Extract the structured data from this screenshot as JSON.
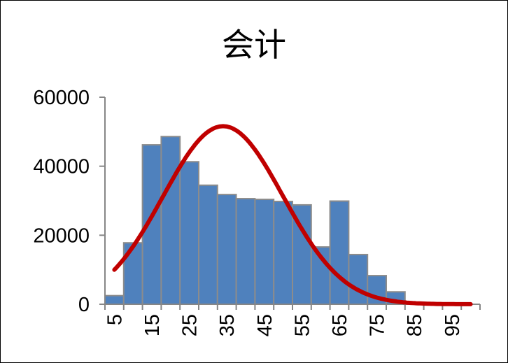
{
  "chart_data": {
    "type": "bar",
    "title": "会计",
    "xlabel": "",
    "ylabel": "",
    "bins": [
      5,
      10,
      15,
      20,
      25,
      30,
      35,
      40,
      45,
      50,
      55,
      60,
      65,
      70,
      75,
      80,
      85,
      90,
      95,
      100
    ],
    "values": [
      2500,
      17800,
      46200,
      48600,
      41300,
      34500,
      31800,
      30600,
      30400,
      29800,
      28800,
      16600,
      29900,
      14400,
      8300,
      3600,
      0,
      0,
      0,
      0
    ],
    "x_tick_labels": [
      "5",
      "15",
      "25",
      "35",
      "45",
      "55",
      "65",
      "75",
      "85",
      "95"
    ],
    "ylim": [
      0,
      60000
    ],
    "y_ticks": [
      0,
      20000,
      40000,
      60000
    ],
    "y_tick_labels": [
      "0",
      "20000",
      "40000",
      "60000"
    ],
    "grid": false,
    "legend": "none",
    "curve": {
      "type": "normal-fit",
      "mean": 34,
      "sd": 16,
      "peak": 51600,
      "x_range": [
        5,
        100
      ]
    },
    "colors": {
      "bar_fill": "#4f81bd",
      "bar_edge": "#8c8c8c",
      "curve": "#c00000",
      "axis": "#868686"
    }
  }
}
